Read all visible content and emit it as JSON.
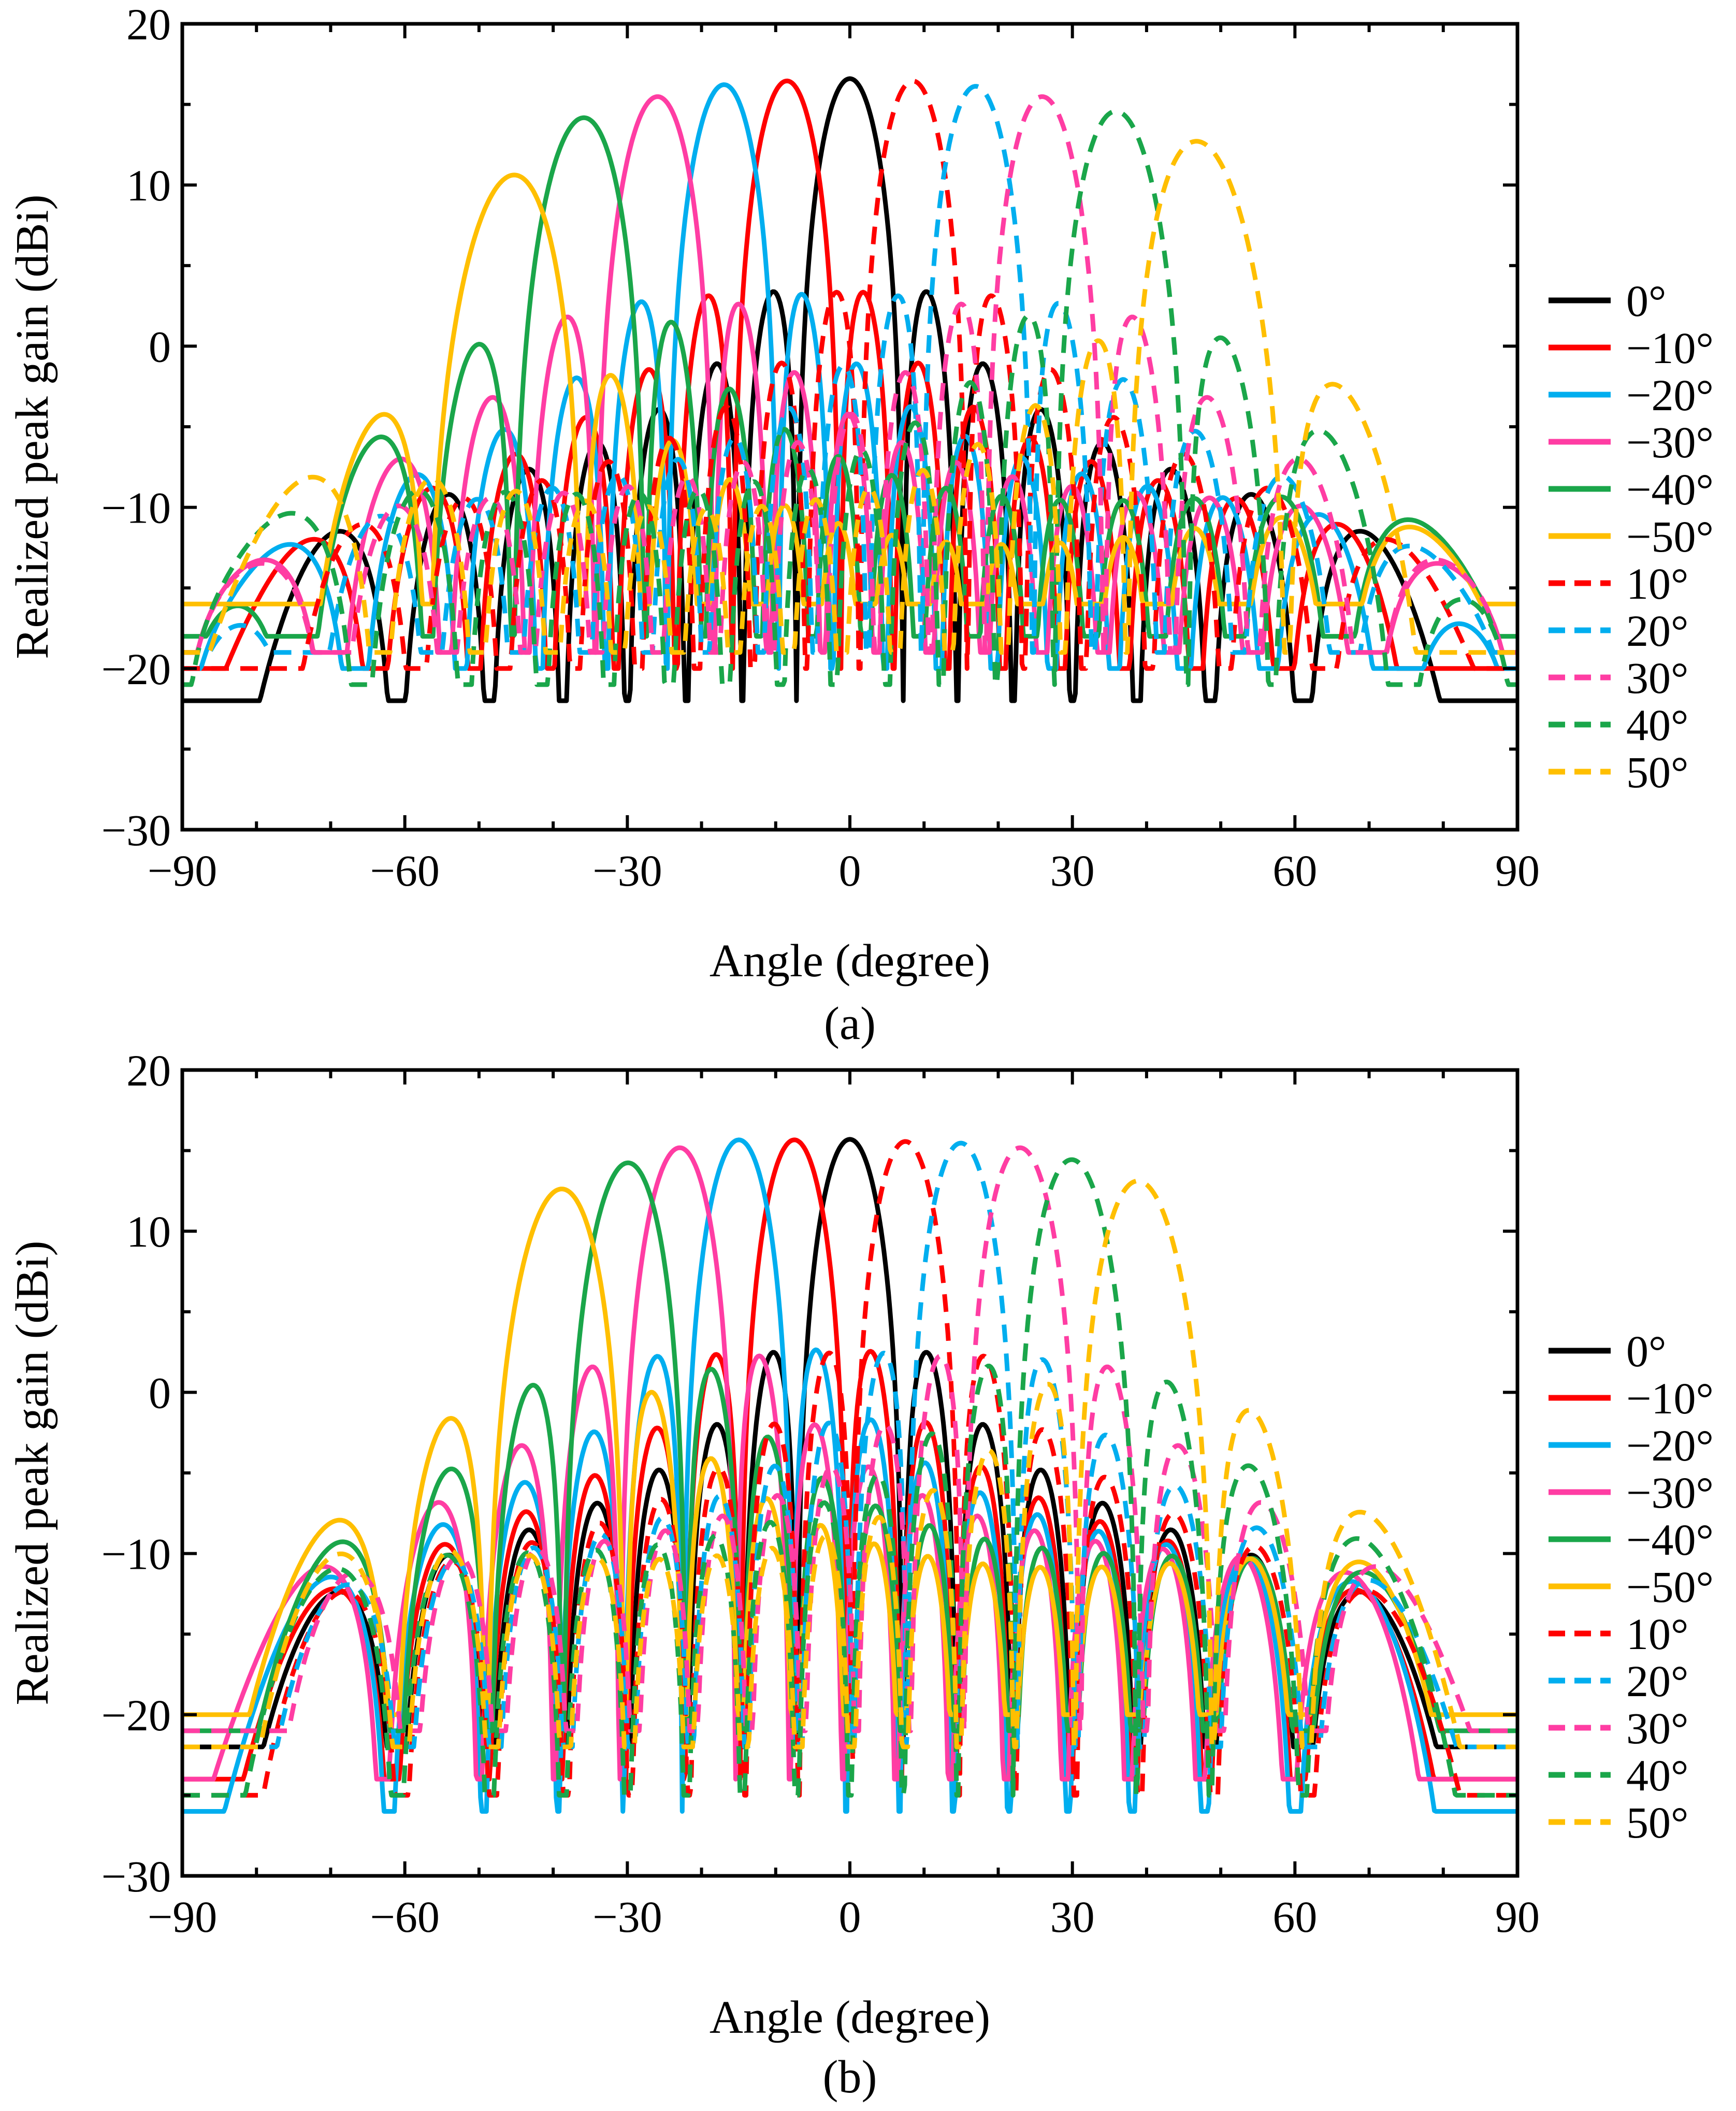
{
  "chart_data": [
    {
      "type": "line",
      "panel_label": "(a)",
      "xlabel": "Angle (degree)",
      "ylabel": "Realized peak gain (dBi)",
      "xlim": [
        -90,
        90
      ],
      "ylim": [
        -30,
        20
      ],
      "xticks": [
        -90,
        -60,
        -30,
        0,
        30,
        60,
        90
      ],
      "xtick_labels": [
        "−90",
        "−60",
        "−30",
        "0",
        "30",
        "60",
        "90"
      ],
      "yticks": [
        -30,
        -20,
        -10,
        0,
        10,
        20
      ],
      "ytick_labels": [
        "−30",
        "−20",
        "−10",
        "0",
        "10",
        "20"
      ],
      "grid": false,
      "legend_position": "right",
      "series": [
        {
          "name": "0°",
          "color": "#000000",
          "dash": "solid",
          "steer": 0,
          "peak": 16.6,
          "nullDepth": -22
        },
        {
          "name": "−10°",
          "color": "#ff0000",
          "dash": "solid",
          "steer": -8.5,
          "peak": 16.5,
          "nullDepth": -20
        },
        {
          "name": "−20°",
          "color": "#00aeef",
          "dash": "solid",
          "steer": -17,
          "peak": 16.4,
          "nullDepth": -20
        },
        {
          "name": "−30°",
          "color": "#ff3da3",
          "dash": "solid",
          "steer": -26,
          "peak": 15.9,
          "nullDepth": -19
        },
        {
          "name": "−40°",
          "color": "#1aa64a",
          "dash": "solid",
          "steer": -36,
          "peak": 15.0,
          "nullDepth": -18
        },
        {
          "name": "−50°",
          "color": "#ffbf00",
          "dash": "solid",
          "steer": -45.5,
          "peak": 12.0,
          "nullDepth": -16
        },
        {
          "name": "10°",
          "color": "#ff0000",
          "dash": "dashed",
          "steer": 8.5,
          "peak": 16.5,
          "nullDepth": -20
        },
        {
          "name": "20°",
          "color": "#00aeef",
          "dash": "dashed",
          "steer": 17,
          "peak": 16.3,
          "nullDepth": -19
        },
        {
          "name": "30°",
          "color": "#ff3da3",
          "dash": "dashed",
          "steer": 26,
          "peak": 15.9,
          "nullDepth": -19
        },
        {
          "name": "40°",
          "color": "#1aa64a",
          "dash": "dashed",
          "steer": 36,
          "peak": 15.4,
          "nullDepth": -21
        },
        {
          "name": "50°",
          "color": "#ffbf00",
          "dash": "dashed",
          "steer": 47,
          "peak": 14.2,
          "nullDepth": -19
        }
      ]
    },
    {
      "type": "line",
      "panel_label": "(b)",
      "xlabel": "Angle (degree)",
      "ylabel": "Realized peak gain (dBi)",
      "xlim": [
        -90,
        90
      ],
      "ylim": [
        -30,
        20
      ],
      "xticks": [
        -90,
        -60,
        -30,
        0,
        30,
        60,
        90
      ],
      "xtick_labels": [
        "−90",
        "−60",
        "−30",
        "0",
        "30",
        "60",
        "90"
      ],
      "yticks": [
        -30,
        -20,
        -10,
        0,
        10,
        20
      ],
      "ytick_labels": [
        "−30",
        "−20",
        "−10",
        "0",
        "10",
        "20"
      ],
      "grid": false,
      "legend_position": "right",
      "series": [
        {
          "name": "0°",
          "color": "#000000",
          "dash": "solid",
          "steer": 0,
          "peak": 15.7,
          "nullDepth": -22
        },
        {
          "name": "−10°",
          "color": "#ff0000",
          "dash": "solid",
          "steer": -7.5,
          "peak": 15.7,
          "nullDepth": -24
        },
        {
          "name": "−20°",
          "color": "#00aeef",
          "dash": "solid",
          "steer": -15,
          "peak": 15.8,
          "nullDepth": -26
        },
        {
          "name": "−30°",
          "color": "#ff3da3",
          "dash": "solid",
          "steer": -23,
          "peak": 15.5,
          "nullDepth": -24
        },
        {
          "name": "−40°",
          "color": "#1aa64a",
          "dash": "solid",
          "steer": -30,
          "peak": 14.8,
          "nullDepth": -21
        },
        {
          "name": "−50°",
          "color": "#ffbf00",
          "dash": "solid",
          "steer": -39,
          "peak": 13.6,
          "nullDepth": -20
        },
        {
          "name": "10°",
          "color": "#ff0000",
          "dash": "dashed",
          "steer": 7.5,
          "peak": 15.6,
          "nullDepth": -25
        },
        {
          "name": "20°",
          "color": "#00aeef",
          "dash": "dashed",
          "steer": 15,
          "peak": 15.6,
          "nullDepth": -22
        },
        {
          "name": "30°",
          "color": "#ff3da3",
          "dash": "dashed",
          "steer": 23,
          "peak": 15.5,
          "nullDepth": -21
        },
        {
          "name": "40°",
          "color": "#1aa64a",
          "dash": "dashed",
          "steer": 30,
          "peak": 15.0,
          "nullDepth": -25
        },
        {
          "name": "50°",
          "color": "#ffbf00",
          "dash": "dashed",
          "steer": 39,
          "peak": 14.1,
          "nullDepth": -22
        }
      ]
    }
  ]
}
